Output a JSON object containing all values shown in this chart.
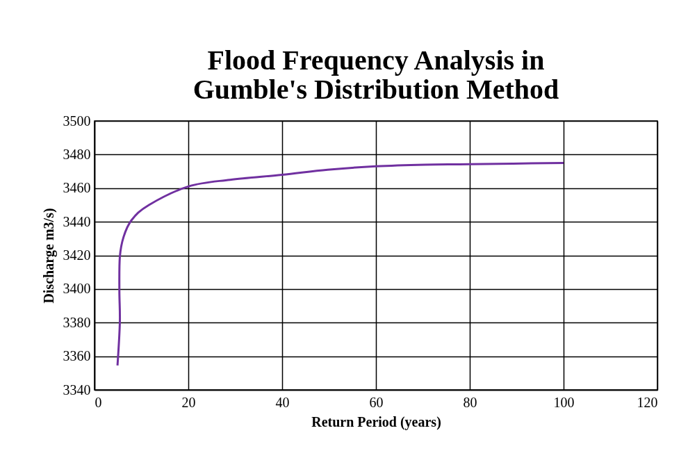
{
  "chart_data": {
    "type": "line",
    "title": "Flood Frequency Analysis in\nGumble's Distribution Method",
    "xlabel": "Return Period (years)",
    "ylabel": "Discharge m3/s)",
    "x": [
      4.9,
      5.4,
      5.3,
      5.4,
      6.2,
      7.9,
      11.6,
      20,
      28.9,
      40,
      49.7,
      60,
      70.5,
      80,
      100
    ],
    "series": [
      {
        "color": "#7030a0",
        "values": [
          3354.5,
          3380,
          3399,
          3419,
          3431,
          3441,
          3450,
          3461,
          3465,
          3468,
          3471,
          3473,
          3474,
          3474.3,
          3475
        ]
      }
    ],
    "xlim": [
      0,
      120
    ],
    "xticks": [
      0,
      20,
      40,
      60,
      80,
      100,
      120
    ],
    "ylim": [
      3340,
      3500
    ],
    "yticks": [
      3340,
      3360,
      3380,
      3400,
      3420,
      3440,
      3460,
      3480,
      3500
    ],
    "grid": true,
    "marker": "none",
    "line_style": "solid"
  }
}
